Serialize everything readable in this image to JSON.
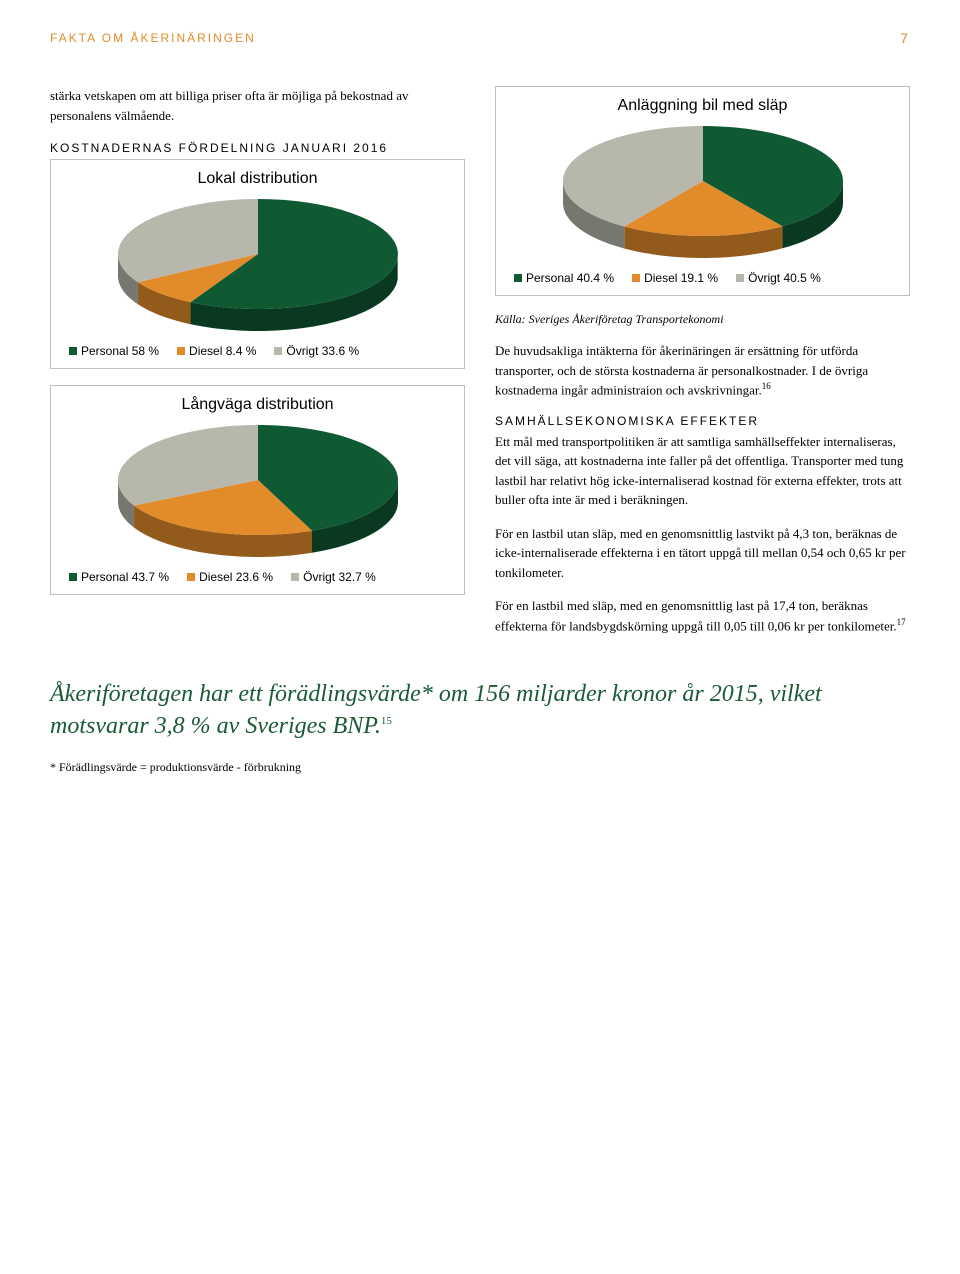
{
  "header": {
    "title": "FAKTA OM ÅKERINÄRINGEN",
    "page_number": "7"
  },
  "left": {
    "intro": "stärka vetskapen om att billiga priser ofta är möjliga på bekostnad av personalens välmående.",
    "section_heading": "KOSTNADERNAS FÖRDELNING JANUARI 2016",
    "chart1": {
      "type": "pie",
      "title": "Lokal distribution",
      "slices": [
        {
          "label": "Personal 58 %",
          "value": 58,
          "color": "#0f5a33"
        },
        {
          "label": "Diesel 8.4 %",
          "value": 8.4,
          "color": "#e28b2a"
        },
        {
          "label": "Övrigt 33.6 %",
          "value": 33.6,
          "color": "#b8b7ac"
        }
      ],
      "legend": [
        "Personal 58 %",
        "Diesel 8.4 %",
        "Övrigt 33.6 %"
      ],
      "legend_colors": [
        "#0f5a33",
        "#e28b2a",
        "#b8b7ac"
      ]
    },
    "chart2": {
      "type": "pie",
      "title": "Långväga distribution",
      "slices": [
        {
          "label": "Personal 43.7 %",
          "value": 43.7,
          "color": "#0f5a33"
        },
        {
          "label": "Diesel 23.6 %",
          "value": 23.6,
          "color": "#e28b2a"
        },
        {
          "label": "Övrigt 32.7 %",
          "value": 32.7,
          "color": "#b8b7ac"
        }
      ],
      "legend": [
        "Personal 43.7 %",
        "Diesel 23.6 %",
        "Övrigt 32.7 %"
      ],
      "legend_colors": [
        "#0f5a33",
        "#e28b2a",
        "#b8b7ac"
      ]
    }
  },
  "right": {
    "chart3": {
      "type": "pie",
      "title": "Anläggning bil med släp",
      "slices": [
        {
          "label": "Personal 40.4 %",
          "value": 40.4,
          "color": "#0f5a33"
        },
        {
          "label": "Diesel 19.1 %",
          "value": 19.1,
          "color": "#e28b2a"
        },
        {
          "label": "Övrigt 40.5 %",
          "value": 40.5,
          "color": "#b8b7ac"
        }
      ],
      "legend": [
        "Personal 40.4 %",
        "Diesel 19.1 %",
        "Övrigt 40.5 %"
      ],
      "legend_colors": [
        "#0f5a33",
        "#e28b2a",
        "#b8b7ac"
      ]
    },
    "source": "Källa: Sveriges Åkeriföretag Transportekonomi",
    "p1": "De huvudsakliga intäkterna för åkerinäringen är ersättning för utförda transporter, och de största kostnaderna är personalkostnader. I de övriga kostnaderna ingår administraion och avskrivningar.",
    "p1_sup": "16",
    "h2": "SAMHÄLLSEKONOMISKA EFFEKTER",
    "p2": "Ett mål med transportpolitiken är att samtliga samhällseffekter internaliseras, det vill säga, att kostnaderna inte faller på det offentliga. Transporter med tung lastbil har relativt hög icke-internaliserad kostnad för externa effekter, trots att buller ofta inte är med i beräkningen.",
    "p3": "För en lastbil utan släp, med en genomsnittlig lastvikt på 4,3 ton, beräknas de icke-internaliserade effekterna i en tätort uppgå till mellan 0,54 och 0,65 kr per tonkilometer.",
    "p4": "För en lastbil med släp, med en genomsnittlig last på 17,4 ton, beräknas effekterna för landsbygdskörning uppgå till 0,05 till 0,06 kr per tonkilometer.",
    "p4_sup": "17"
  },
  "callout": {
    "text": "Åkeriföretagen har ett förädlingsvärde* om 156 miljarder kronor år 2015, vilket motsvarar 3,8 % av Sveriges BNP.",
    "sup": "15"
  },
  "footnote": "* Förädlingsvärde = produktionsvärde - förbrukning"
}
